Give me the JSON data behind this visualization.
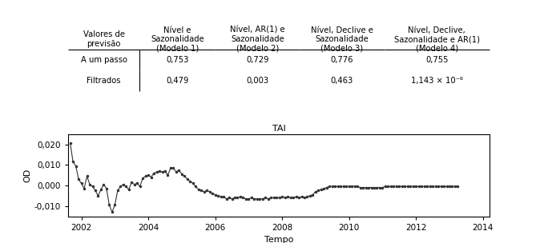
{
  "table_header_row0": [
    "Valores de\nprevisão",
    "Nível e\nSazonalidade\n(Modelo 1)",
    "Nível, AR(1) e\nSazonalidade\n(Modelo 2)",
    "Nível, Declive e\nSazonalidade\n(Modelo 3)",
    "Nível, Declive,\nSazonalidade e AR(1)\n(Modelo 4)"
  ],
  "table_row1": [
    "A um passo",
    "0,753",
    "0,729",
    "0,776",
    "0,755"
  ],
  "table_row2": [
    "Filtrados",
    "0,479",
    "0,003",
    "0,463",
    "1,143 × 10⁻⁶"
  ],
  "chart_title": "TAI",
  "xlabel": "Tempo",
  "ylabel": "OD",
  "ylim": [
    -0.015,
    0.025
  ],
  "yticks": [
    -0.01,
    0.0,
    0.01,
    0.02
  ],
  "ytick_labels": [
    "-0,010",
    "0,000",
    "0,010",
    "0,020"
  ],
  "xlim_start": 2001.6,
  "xlim_end": 2014.2,
  "xticks": [
    2002,
    2004,
    2006,
    2008,
    2010,
    2012,
    2014
  ],
  "line_color": "#333333",
  "markersize": 3,
  "linewidth": 0.8,
  "background_color": "#ffffff",
  "values": [
    0.0205,
    0.0115,
    0.0095,
    0.003,
    0.001,
    -0.0015,
    0.0045,
    0.0005,
    -0.0005,
    -0.0025,
    -0.005,
    -0.002,
    0.0005,
    -0.0015,
    -0.0095,
    -0.013,
    -0.0095,
    -0.0025,
    -0.0005,
    0.0005,
    -0.0005,
    -0.002,
    0.0015,
    0.0005,
    0.001,
    -0.0005,
    0.0035,
    0.0045,
    0.005,
    0.004,
    0.006,
    0.0065,
    0.007,
    0.0065,
    0.007,
    0.005,
    0.0085,
    0.0085,
    0.0065,
    0.0075,
    0.0055,
    0.0045,
    0.003,
    0.002,
    0.001,
    -0.0005,
    -0.002,
    -0.0025,
    -0.003,
    -0.0025,
    -0.003,
    -0.004,
    -0.0045,
    -0.005,
    -0.0055,
    -0.0055,
    -0.0065,
    -0.006,
    -0.0065,
    -0.006,
    -0.006,
    -0.0055,
    -0.006,
    -0.0065,
    -0.0065,
    -0.006,
    -0.0065,
    -0.0065,
    -0.0065,
    -0.0065,
    -0.006,
    -0.0065,
    -0.006,
    -0.006,
    -0.006,
    -0.006,
    -0.0055,
    -0.006,
    -0.0055,
    -0.006,
    -0.006,
    -0.0055,
    -0.006,
    -0.0055,
    -0.006,
    -0.0055,
    -0.005,
    -0.0045,
    -0.003,
    -0.0025,
    -0.002,
    -0.0015,
    -0.001,
    -0.0005,
    -0.0005,
    -0.0005,
    -0.0005,
    -0.0005,
    -0.0005,
    -0.0005,
    -0.0005,
    -0.0005,
    -0.0005,
    -0.0005,
    -0.001,
    -0.001,
    -0.001,
    -0.001,
    -0.001,
    -0.001,
    -0.001,
    -0.001,
    -0.001,
    -0.0005,
    -0.0005,
    -0.0005,
    -0.0005,
    -0.0005,
    -0.0005,
    -0.0005,
    -0.0005,
    -0.0005,
    -0.0005,
    -0.0005,
    -0.0005,
    -0.0005,
    -0.0005,
    -0.0005,
    -0.0005,
    -0.0005,
    -0.0005,
    -0.0005,
    -0.0005,
    -0.0005,
    -0.0005,
    -0.0005,
    -0.0005,
    -0.0005,
    -0.0005,
    -0.0005
  ]
}
